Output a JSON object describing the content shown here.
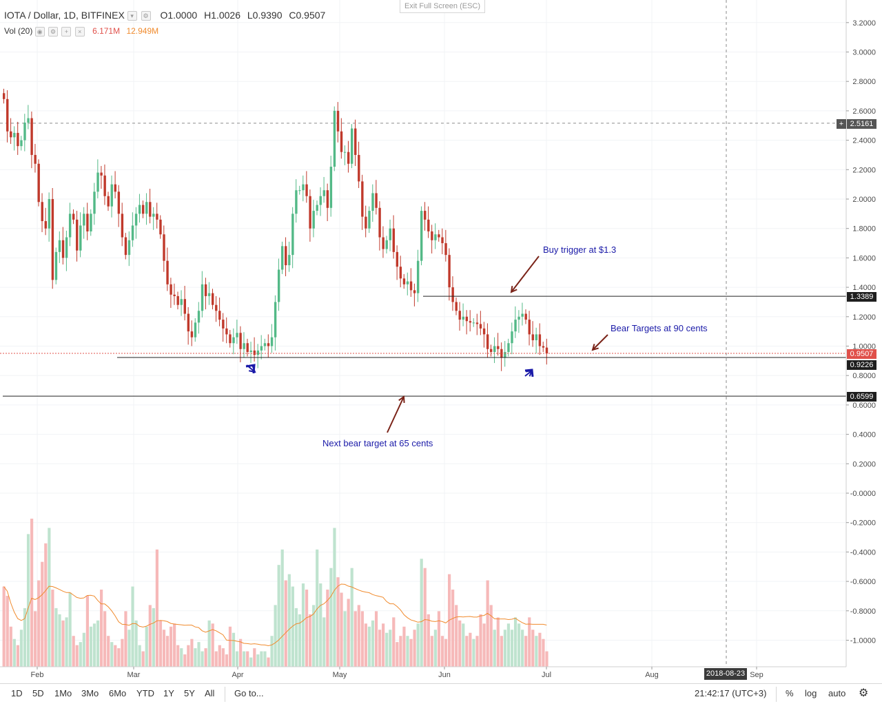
{
  "legend": {
    "symbol": "IOTA / Dollar, 1D, BITFINEX",
    "open": "O1.0000",
    "high": "H1.0026",
    "low": "L0.9390",
    "close": "C0.9507",
    "vol_label": "Vol (20)",
    "vol_value": "6.171M",
    "vol_ma": "12.949M"
  },
  "exit_fullscreen": "Exit Full Screen (ESC)",
  "price_labels": {
    "last": "0.9507",
    "support": "0.9226",
    "trigger": "1.3389",
    "target": "0.6599",
    "crosshair": "2.5161"
  },
  "crosshair_date": "2018-08-23",
  "annotations": {
    "buy_trigger": "Buy trigger at $1.3",
    "bear_targets": "Bear Targets at 90 cents",
    "next_bear": "Next bear target at 65 cents"
  },
  "bottom": {
    "ranges": [
      "1D",
      "5D",
      "1Mo",
      "3Mo",
      "6Mo",
      "YTD",
      "1Y",
      "5Y",
      "All"
    ],
    "goto": "Go to...",
    "clock": "21:42:17 (UTC+3)",
    "percent": "%",
    "log": "log",
    "auto": "auto"
  },
  "colors": {
    "up": "#53b987",
    "down": "#c0392b",
    "vol_up": "#bfe3cf",
    "vol_down": "#f6b9b9",
    "ma": "#f08a2c",
    "annotation": "#1a1aa8"
  },
  "chart_data": {
    "type": "candlestick",
    "x_ticks": [
      "Feb",
      "Mar",
      "Apr",
      "May",
      "Jun",
      "Jul",
      "Aug",
      "Sep"
    ],
    "y_ticks": [
      "3.2000",
      "3.0000",
      "2.8000",
      "2.6000",
      "2.4000",
      "2.2000",
      "2.0000",
      "1.8000",
      "1.6000",
      "1.4000",
      "1.2000",
      "1.0000",
      "0.8000",
      "0.6000",
      "0.4000",
      "0.2000",
      "-0.0000",
      "-0.2000",
      "-0.4000",
      "-0.6000",
      "-0.8000",
      "-1.0000"
    ],
    "ylim": [
      -1.2,
      3.3
    ],
    "levels": [
      1.3389,
      0.9226,
      0.6599
    ],
    "last_close": 0.9507,
    "closes": [
      2.68,
      2.46,
      2.42,
      2.45,
      2.36,
      2.4,
      2.52,
      2.55,
      2.3,
      2.24,
      1.98,
      1.85,
      1.8,
      2.0,
      1.45,
      1.64,
      1.72,
      1.6,
      1.74,
      1.9,
      1.86,
      1.65,
      1.82,
      1.9,
      1.78,
      1.9,
      2.05,
      2.18,
      2.16,
      2.02,
      1.95,
      2.1,
      2.05,
      1.9,
      1.74,
      1.62,
      1.72,
      1.82,
      1.9,
      1.96,
      1.9,
      1.98,
      1.88,
      1.9,
      1.86,
      1.76,
      1.58,
      1.42,
      1.35,
      1.34,
      1.28,
      1.32,
      1.22,
      1.1,
      1.06,
      1.16,
      1.24,
      1.42,
      1.34,
      1.36,
      1.28,
      1.24,
      1.18,
      1.12,
      1.08,
      1.02,
      1.06,
      1.09,
      0.98,
      1.02,
      0.96,
      0.97,
      0.94,
      0.97,
      1.0,
      1.02,
      1.0,
      1.06,
      1.3,
      1.52,
      1.68,
      1.55,
      1.62,
      1.9,
      2.06,
      2.06,
      2.1,
      2.02,
      1.8,
      1.92,
      1.96,
      2.02,
      2.06,
      1.94,
      2.22,
      2.6,
      2.46,
      2.32,
      2.32,
      2.24,
      2.48,
      2.3,
      2.12,
      1.88,
      1.8,
      1.92,
      2.04,
      1.94,
      1.74,
      1.66,
      1.72,
      1.8,
      1.64,
      1.54,
      1.46,
      1.42,
      1.44,
      1.38,
      1.36,
      1.58,
      1.92,
      1.86,
      1.78,
      1.72,
      1.76,
      1.74,
      1.7,
      1.62,
      1.4,
      1.3,
      1.24,
      1.18,
      1.2,
      1.17,
      1.16,
      1.16,
      1.15,
      1.12,
      1.08,
      0.98,
      0.96,
      1.0,
      0.98,
      0.92,
      0.96,
      1.02,
      1.1,
      1.18,
      1.2,
      1.22,
      1.18,
      1.08,
      1.04,
      1.08,
      1.0,
      0.99,
      0.95
    ],
    "volume": [
      0.26,
      0.23,
      0.13,
      0.09,
      0.07,
      0.12,
      0.19,
      0.43,
      0.48,
      0.18,
      0.28,
      0.34,
      0.4,
      0.45,
      0.25,
      0.19,
      0.17,
      0.15,
      0.16,
      0.24,
      0.1,
      0.07,
      0.08,
      0.11,
      0.23,
      0.13,
      0.14,
      0.15,
      0.25,
      0.18,
      0.1,
      0.08,
      0.07,
      0.06,
      0.09,
      0.18,
      0.12,
      0.26,
      0.15,
      0.07,
      0.05,
      0.13,
      0.2,
      0.19,
      0.38,
      0.15,
      0.12,
      0.1,
      0.13,
      0.14,
      0.07,
      0.06,
      0.04,
      0.07,
      0.09,
      0.06,
      0.08,
      0.05,
      0.06,
      0.15,
      0.14,
      0.05,
      0.07,
      0.06,
      0.04,
      0.13,
      0.11,
      0.05,
      0.09,
      0.05,
      0.05,
      0.03,
      0.06,
      0.04,
      0.05,
      0.05,
      0.03,
      0.1,
      0.2,
      0.33,
      0.38,
      0.28,
      0.3,
      0.26,
      0.19,
      0.17,
      0.27,
      0.25,
      0.17,
      0.2,
      0.38,
      0.27,
      0.16,
      0.25,
      0.32,
      0.45,
      0.29,
      0.24,
      0.18,
      0.22,
      0.32,
      0.18,
      0.2,
      0.18,
      0.14,
      0.13,
      0.15,
      0.18,
      0.12,
      0.14,
      0.11,
      0.12,
      0.16,
      0.08,
      0.1,
      0.13,
      0.1,
      0.09,
      0.12,
      0.14,
      0.35,
      0.32,
      0.17,
      0.1,
      0.12,
      0.18,
      0.1,
      0.09,
      0.3,
      0.25,
      0.2,
      0.15,
      0.14,
      0.1,
      0.11,
      0.09,
      0.1,
      0.17,
      0.14,
      0.28,
      0.2,
      0.12,
      0.16,
      0.1,
      0.12,
      0.14,
      0.12,
      0.16,
      0.14,
      0.12,
      0.1,
      0.16,
      0.12,
      0.1,
      0.11,
      0.09,
      0.05
    ]
  }
}
